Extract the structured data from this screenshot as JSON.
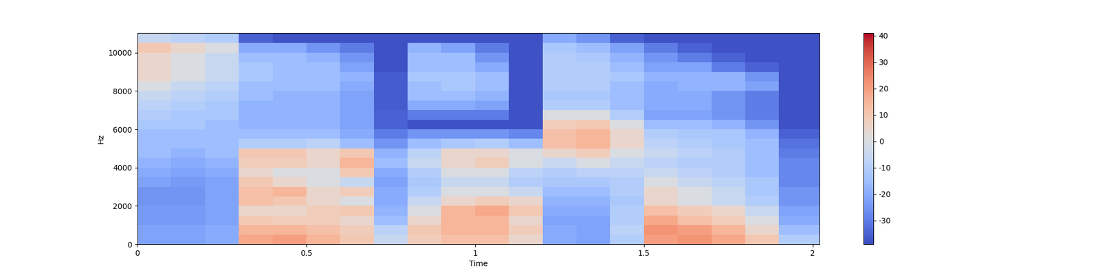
{
  "chart_data": {
    "type": "heatmap",
    "x_label": "Time",
    "y_label": "Hz",
    "xlim": [
      0,
      2.02
    ],
    "ylim": [
      0,
      11025
    ],
    "xticks": [
      0,
      0.5,
      1,
      1.5,
      2
    ],
    "yticks": [
      0,
      2000,
      4000,
      6000,
      8000,
      10000
    ],
    "time_edges": [
      0,
      0.1,
      0.2,
      0.3,
      0.4,
      0.5,
      0.6,
      0.7,
      0.8,
      0.9,
      1.0,
      1.1,
      1.2,
      1.3,
      1.4,
      1.5,
      1.6,
      1.7,
      1.8,
      1.9,
      2.02
    ],
    "freq_edges": [
      0,
      500,
      1000,
      1500,
      2000,
      2500,
      3000,
      3500,
      4000,
      4500,
      5000,
      5500,
      6000,
      6500,
      7000,
      7500,
      8000,
      8500,
      9000,
      9500,
      10000,
      10500,
      11025
    ],
    "cells": [
      [
        -22,
        -22,
        -20,
        18,
        20,
        15,
        10,
        -5,
        8,
        12,
        12,
        5,
        -20,
        -22,
        -10,
        20,
        22,
        18,
        10,
        -10
      ],
      [
        -22,
        -22,
        -20,
        15,
        15,
        12,
        8,
        -8,
        10,
        15,
        15,
        8,
        -20,
        -22,
        -8,
        22,
        20,
        15,
        5,
        -15
      ],
      [
        -24,
        -24,
        -22,
        10,
        8,
        8,
        5,
        -15,
        5,
        15,
        15,
        5,
        -22,
        -22,
        -10,
        18,
        12,
        8,
        0,
        -20
      ],
      [
        -24,
        -24,
        -22,
        5,
        5,
        8,
        10,
        -18,
        0,
        15,
        18,
        10,
        -20,
        -20,
        -10,
        12,
        8,
        5,
        -5,
        -22
      ],
      [
        -25,
        -25,
        -22,
        12,
        10,
        5,
        0,
        -20,
        -5,
        5,
        8,
        5,
        -18,
        -18,
        -12,
        5,
        0,
        -5,
        -10,
        -25
      ],
      [
        -25,
        -25,
        -22,
        12,
        15,
        5,
        8,
        -20,
        -10,
        0,
        0,
        -5,
        -15,
        -15,
        -10,
        5,
        0,
        -5,
        -12,
        -25
      ],
      [
        -22,
        -24,
        -22,
        10,
        5,
        0,
        -5,
        -22,
        -12,
        -5,
        -5,
        -10,
        -12,
        -12,
        -10,
        0,
        -5,
        -8,
        -12,
        -28
      ],
      [
        -20,
        -22,
        -20,
        5,
        0,
        0,
        10,
        -20,
        -10,
        0,
        0,
        -8,
        -10,
        -8,
        -8,
        -5,
        -8,
        -10,
        -15,
        -28
      ],
      [
        -18,
        -20,
        -18,
        8,
        8,
        5,
        15,
        -15,
        -5,
        5,
        8,
        0,
        -5,
        0,
        -5,
        -8,
        -10,
        -10,
        -15,
        -28
      ],
      [
        -15,
        -18,
        -15,
        10,
        10,
        5,
        10,
        -18,
        -8,
        5,
        5,
        0,
        5,
        8,
        0,
        -5,
        -8,
        -10,
        -15,
        -30
      ],
      [
        -15,
        -15,
        -15,
        -10,
        -10,
        -8,
        -15,
        -25,
        -15,
        -12,
        -10,
        -15,
        12,
        15,
        5,
        -8,
        -10,
        -12,
        -15,
        -32
      ],
      [
        -15,
        -15,
        -15,
        -15,
        -15,
        -15,
        -20,
        -30,
        -25,
        -25,
        -25,
        -28,
        12,
        15,
        5,
        -10,
        -12,
        -12,
        -18,
        -35
      ],
      [
        -12,
        -12,
        -15,
        -18,
        -18,
        -18,
        -22,
        -35,
        -38,
        -38,
        -38,
        -38,
        8,
        10,
        0,
        -15,
        -15,
        -18,
        -25,
        -38
      ],
      [
        -10,
        -12,
        -12,
        -18,
        -18,
        -18,
        -22,
        -35,
        -30,
        -30,
        -30,
        -38,
        0,
        0,
        -10,
        -22,
        -22,
        -25,
        -30,
        -38
      ],
      [
        -8,
        -10,
        -12,
        -18,
        -18,
        -18,
        -22,
        -36,
        -20,
        -20,
        -22,
        -38,
        -10,
        -10,
        -15,
        -20,
        -20,
        -25,
        -30,
        -38
      ],
      [
        -5,
        -8,
        -10,
        -15,
        -18,
        -18,
        -22,
        -36,
        -15,
        -15,
        -18,
        -38,
        -12,
        -12,
        -15,
        -20,
        -20,
        -25,
        -30,
        -38
      ],
      [
        0,
        -5,
        -8,
        -15,
        -15,
        -15,
        -20,
        -36,
        -15,
        -12,
        -15,
        -38,
        -10,
        -10,
        -15,
        -20,
        -18,
        -18,
        -22,
        -38
      ],
      [
        5,
        0,
        -5,
        -12,
        -15,
        -15,
        -18,
        -36,
        -12,
        -12,
        -15,
        -38,
        -10,
        -10,
        -12,
        -18,
        -18,
        -18,
        -25,
        -38
      ],
      [
        5,
        0,
        -5,
        -12,
        -15,
        -15,
        -22,
        -38,
        -15,
        -15,
        -20,
        -38,
        -10,
        -10,
        -15,
        -22,
        -22,
        -30,
        -35,
        -38
      ],
      [
        5,
        0,
        -5,
        -15,
        -15,
        -18,
        -25,
        -38,
        -15,
        -15,
        -25,
        -38,
        -10,
        -12,
        -18,
        -25,
        -30,
        -35,
        -38,
        -38
      ],
      [
        10,
        5,
        0,
        -20,
        -20,
        -25,
        -30,
        -38,
        -18,
        -22,
        -30,
        -38,
        -12,
        -15,
        -22,
        -30,
        -35,
        -38,
        -38,
        -38
      ],
      [
        -5,
        -8,
        -10,
        -35,
        -38,
        -38,
        -38,
        -38,
        -38,
        -38,
        -38,
        -38,
        -20,
        -25,
        -35,
        -38,
        -38,
        -38,
        -38,
        -38
      ]
    ],
    "colorbar_lim": [
      -39,
      41
    ],
    "colorbar_ticks": [
      -30,
      -20,
      -10,
      0,
      10,
      20,
      30,
      40
    ]
  }
}
